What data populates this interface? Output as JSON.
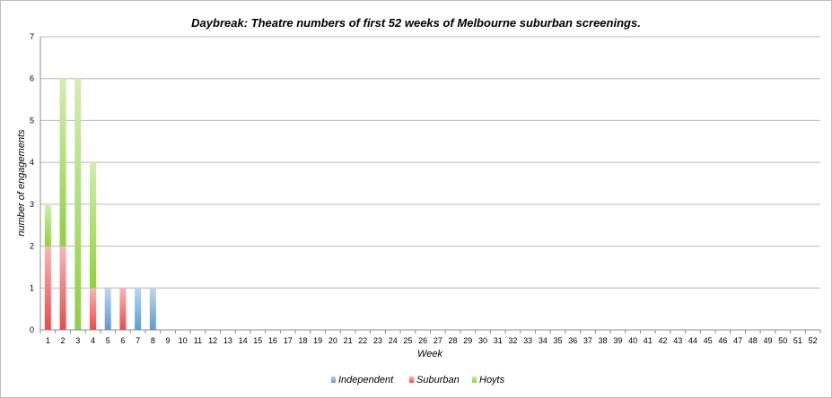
{
  "chart_data": {
    "type": "bar",
    "stacked": true,
    "title": "Daybreak: Theatre numbers of first 52 weeks of Melbourne suburban screenings.",
    "xlabel": "Week",
    "ylabel": "number of engagements",
    "ylim": [
      0,
      7
    ],
    "yticks": [
      "0",
      "1",
      "2",
      "3",
      "4",
      "5",
      "6",
      "7"
    ],
    "grid": true,
    "legend_position": "bottom",
    "categories": [
      "1",
      "2",
      "3",
      "4",
      "5",
      "6",
      "7",
      "8",
      "9",
      "10",
      "11",
      "12",
      "13",
      "14",
      "15",
      "16",
      "17",
      "18",
      "19",
      "20",
      "21",
      "22",
      "23",
      "24",
      "25",
      "26",
      "27",
      "28",
      "29",
      "30",
      "31",
      "32",
      "33",
      "34",
      "35",
      "36",
      "37",
      "38",
      "39",
      "40",
      "41",
      "42",
      "43",
      "44",
      "45",
      "46",
      "47",
      "48",
      "49",
      "50",
      "51",
      "52"
    ],
    "series": [
      {
        "name": "Independent",
        "color": "#5b9bd5",
        "values": [
          0,
          0,
          0,
          0,
          1,
          0,
          1,
          1,
          0,
          0,
          0,
          0,
          0,
          0,
          0,
          0,
          0,
          0,
          0,
          0,
          0,
          0,
          0,
          0,
          0,
          0,
          0,
          0,
          0,
          0,
          0,
          0,
          0,
          0,
          0,
          0,
          0,
          0,
          0,
          0,
          0,
          0,
          0,
          0,
          0,
          0,
          0,
          0,
          0,
          0,
          0,
          0
        ]
      },
      {
        "name": "Suburban",
        "color": "#e94b4b",
        "values": [
          2,
          2,
          0,
          1,
          0,
          1,
          0,
          0,
          0,
          0,
          0,
          0,
          0,
          0,
          0,
          0,
          0,
          0,
          0,
          0,
          0,
          0,
          0,
          0,
          0,
          0,
          0,
          0,
          0,
          0,
          0,
          0,
          0,
          0,
          0,
          0,
          0,
          0,
          0,
          0,
          0,
          0,
          0,
          0,
          0,
          0,
          0,
          0,
          0,
          0,
          0,
          0
        ]
      },
      {
        "name": "Hoyts",
        "color": "#8fd13f",
        "values": [
          1,
          4,
          6,
          3,
          0,
          0,
          0,
          0,
          0,
          0,
          0,
          0,
          0,
          0,
          0,
          0,
          0,
          0,
          0,
          0,
          0,
          0,
          0,
          0,
          0,
          0,
          0,
          0,
          0,
          0,
          0,
          0,
          0,
          0,
          0,
          0,
          0,
          0,
          0,
          0,
          0,
          0,
          0,
          0,
          0,
          0,
          0,
          0,
          0,
          0,
          0,
          0
        ]
      }
    ]
  }
}
